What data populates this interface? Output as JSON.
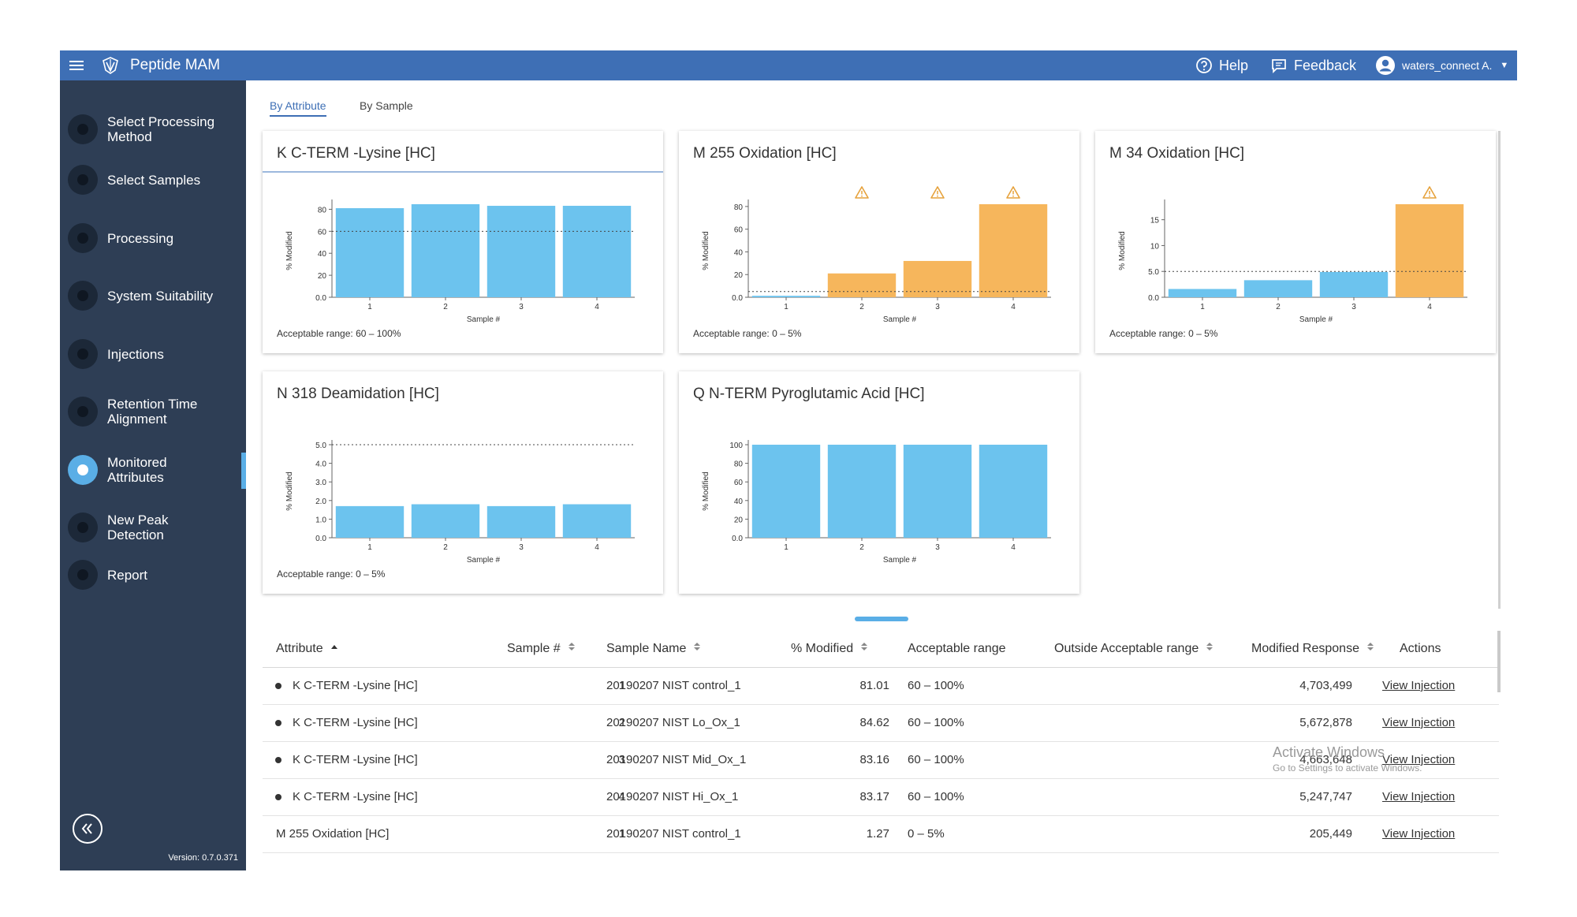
{
  "topbar": {
    "title": "Peptide MAM",
    "help": "Help",
    "feedback": "Feedback",
    "user": "waters_connect A."
  },
  "sidebar": {
    "items": [
      {
        "label": "Select Processing\nMethod"
      },
      {
        "label": "Select Samples"
      },
      {
        "label": "Processing"
      },
      {
        "label": "System Suitability"
      },
      {
        "label": "Injections"
      },
      {
        "label": "Retention Time\nAlignment"
      },
      {
        "label": "Monitored\nAttributes",
        "active": true
      },
      {
        "label": "New Peak\nDetection"
      },
      {
        "label": "Report"
      }
    ],
    "version": "Version: 0.7.0.371"
  },
  "tabs": [
    "By Attribute",
    "By Sample"
  ],
  "colors": {
    "in_range": "#6cc3ee",
    "out_of_range": "#f6b65c",
    "warning": "#e6a23c",
    "accent": "#3e6fb5"
  },
  "chart_data": [
    {
      "type": "bar",
      "title": "K C-TERM -Lysine [HC]",
      "categories": [
        "1",
        "2",
        "3",
        "4"
      ],
      "values": [
        81.01,
        84.62,
        83.16,
        83.17
      ],
      "out_of_range": [
        false,
        false,
        false,
        false
      ],
      "ylabel": "% Modified",
      "xlabel": "Sample #",
      "yticks": [
        "0.0",
        "20",
        "40",
        "60",
        "80"
      ],
      "ylim": [
        0,
        84.62
      ],
      "threshold": 60,
      "range_text": "Acceptable range: 60 – 100%"
    },
    {
      "type": "bar",
      "title": "M 255 Oxidation [HC]",
      "categories": [
        "1",
        "2",
        "3",
        "4"
      ],
      "values": [
        1.27,
        21,
        32,
        82
      ],
      "out_of_range": [
        false,
        true,
        true,
        true
      ],
      "ylabel": "% Modified",
      "xlabel": "Sample #",
      "yticks": [
        "0.0",
        "20",
        "40",
        "60",
        "80"
      ],
      "ylim": [
        0,
        82
      ],
      "threshold": 5,
      "range_text": "Acceptable range: 0 – 5%"
    },
    {
      "type": "bar",
      "title": "M 34 Oxidation [HC]",
      "categories": [
        "1",
        "2",
        "3",
        "4"
      ],
      "values": [
        1.6,
        3.3,
        4.9,
        18
      ],
      "out_of_range": [
        false,
        false,
        false,
        true
      ],
      "ylabel": "% Modified",
      "xlabel": "Sample #",
      "yticks": [
        "0.0",
        "5.0",
        "10",
        "15"
      ],
      "ylim": [
        0,
        18
      ],
      "threshold": 5,
      "range_text": "Acceptable range: 0 – 5%"
    },
    {
      "type": "bar",
      "title": "N 318 Deamidation [HC]",
      "categories": [
        "1",
        "2",
        "3",
        "4"
      ],
      "values": [
        1.7,
        1.8,
        1.7,
        1.8
      ],
      "out_of_range": [
        false,
        false,
        false,
        false
      ],
      "ylabel": "% Modified",
      "xlabel": "Sample #",
      "yticks": [
        "0.0",
        "1.0",
        "2.0",
        "3.0",
        "4.0",
        "5.0"
      ],
      "ylim": [
        0,
        5
      ],
      "threshold": 5,
      "range_text": "Acceptable range: 0 – 5%"
    },
    {
      "type": "bar",
      "title": "Q N-TERM Pyroglutamic Acid [HC]",
      "categories": [
        "1",
        "2",
        "3",
        "4"
      ],
      "values": [
        100,
        100,
        100,
        100
      ],
      "out_of_range": [
        false,
        false,
        false,
        false
      ],
      "ylabel": "% Modified",
      "xlabel": "Sample #",
      "yticks": [
        "0.0",
        "20",
        "40",
        "60",
        "80",
        "100"
      ],
      "ylim": [
        0,
        100
      ],
      "threshold": null,
      "range_text": ""
    }
  ],
  "table": {
    "columns": [
      "Attribute",
      "Sample #",
      "Sample Name",
      "% Modified",
      "Acceptable range",
      "Outside Acceptable range",
      "Modified Response",
      "Actions"
    ],
    "rows": [
      {
        "attribute": "K C-TERM -Lysine [HC]",
        "bullet": true,
        "sample": "1",
        "name": "20190207 NIST control_1",
        "modified": "81.01",
        "range": "60 – 100%",
        "outside": "",
        "response": "4,703,499",
        "action": "View Injection"
      },
      {
        "attribute": "K C-TERM -Lysine [HC]",
        "bullet": true,
        "sample": "2",
        "name": "20190207 NIST Lo_Ox_1",
        "modified": "84.62",
        "range": "60 – 100%",
        "outside": "",
        "response": "5,672,878",
        "action": "View Injection"
      },
      {
        "attribute": "K C-TERM -Lysine [HC]",
        "bullet": true,
        "sample": "3",
        "name": "20190207 NIST Mid_Ox_1",
        "modified": "83.16",
        "range": "60 – 100%",
        "outside": "",
        "response": "4,663,648",
        "action": "View Injection"
      },
      {
        "attribute": "K C-TERM -Lysine [HC]",
        "bullet": true,
        "sample": "4",
        "name": "20190207 NIST Hi_Ox_1",
        "modified": "83.17",
        "range": "60 – 100%",
        "outside": "",
        "response": "5,247,747",
        "action": "View Injection"
      },
      {
        "attribute": "M 255 Oxidation [HC]",
        "bullet": false,
        "sample": "1",
        "name": "20190207 NIST control_1",
        "modified": "1.27",
        "range": "0 – 5%",
        "outside": "",
        "response": "205,449",
        "action": "View Injection"
      }
    ]
  },
  "watermark": {
    "line1": "Activate Windows",
    "line2": "Go to Settings to activate Windows."
  }
}
